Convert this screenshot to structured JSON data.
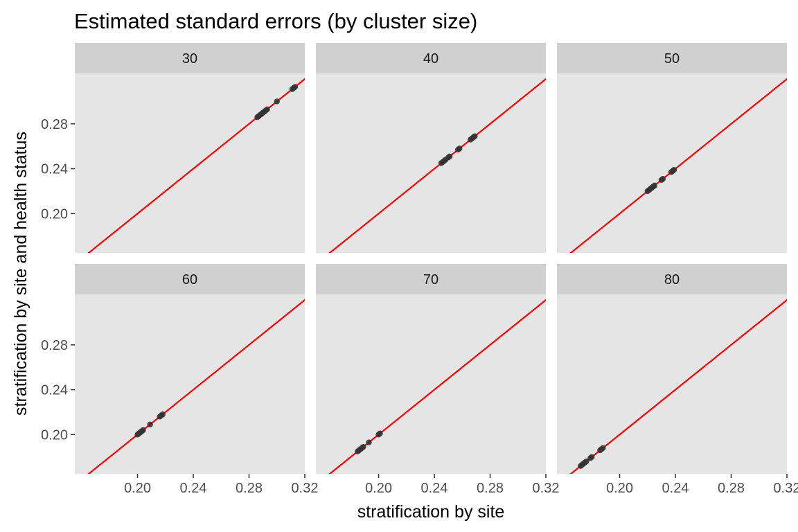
{
  "chart_data": {
    "type": "scatter",
    "title": "Estimated standard errors (by cluster size)",
    "xlabel": "stratification by site",
    "ylabel": "stratification by site and health status",
    "xlim": [
      0.155,
      0.32
    ],
    "ylim": [
      0.165,
      0.325
    ],
    "x_ticks": [
      0.2,
      0.24,
      0.28,
      0.32
    ],
    "x_tick_labels": [
      "0.20",
      "0.24",
      "0.28",
      "0.32"
    ],
    "y_ticks": [
      0.2,
      0.24,
      0.28
    ],
    "y_tick_labels": [
      "0.20",
      "0.24",
      "0.28"
    ],
    "reference_line": {
      "slope": 1,
      "intercept": 0,
      "color": "#ff0000"
    },
    "point_color": "#333333",
    "panel_background": "#e5e5e5",
    "strip_background": "#d0d0d0",
    "grid": false,
    "facet_layout": {
      "rows": 2,
      "cols": 3
    },
    "panels": [
      {
        "label": "30",
        "points": [
          [
            0.286,
            0.286
          ],
          [
            0.287,
            0.287
          ],
          [
            0.288,
            0.288
          ],
          [
            0.289,
            0.289
          ],
          [
            0.29,
            0.29
          ],
          [
            0.291,
            0.291
          ],
          [
            0.292,
            0.292
          ],
          [
            0.293,
            0.293
          ],
          [
            0.3,
            0.3
          ],
          [
            0.311,
            0.311
          ],
          [
            0.312,
            0.312
          ],
          [
            0.313,
            0.313
          ]
        ]
      },
      {
        "label": "40",
        "points": [
          [
            0.245,
            0.245
          ],
          [
            0.246,
            0.246
          ],
          [
            0.247,
            0.247
          ],
          [
            0.248,
            0.248
          ],
          [
            0.25,
            0.25
          ],
          [
            0.251,
            0.251
          ],
          [
            0.257,
            0.257
          ],
          [
            0.258,
            0.258
          ],
          [
            0.266,
            0.266
          ],
          [
            0.267,
            0.267
          ],
          [
            0.268,
            0.268
          ],
          [
            0.269,
            0.269
          ]
        ]
      },
      {
        "label": "50",
        "points": [
          [
            0.22,
            0.22
          ],
          [
            0.221,
            0.221
          ],
          [
            0.222,
            0.222
          ],
          [
            0.223,
            0.223
          ],
          [
            0.224,
            0.224
          ],
          [
            0.225,
            0.225
          ],
          [
            0.23,
            0.23
          ],
          [
            0.231,
            0.231
          ],
          [
            0.237,
            0.237
          ],
          [
            0.238,
            0.238
          ],
          [
            0.239,
            0.239
          ]
        ]
      },
      {
        "label": "60",
        "points": [
          [
            0.2,
            0.2
          ],
          [
            0.201,
            0.201
          ],
          [
            0.202,
            0.202
          ],
          [
            0.203,
            0.203
          ],
          [
            0.204,
            0.204
          ],
          [
            0.209,
            0.209
          ],
          [
            0.216,
            0.216
          ],
          [
            0.217,
            0.217
          ],
          [
            0.218,
            0.218
          ]
        ]
      },
      {
        "label": "70",
        "points": [
          [
            0.185,
            0.185
          ],
          [
            0.186,
            0.186
          ],
          [
            0.187,
            0.187
          ],
          [
            0.188,
            0.188
          ],
          [
            0.189,
            0.189
          ],
          [
            0.193,
            0.193
          ],
          [
            0.2,
            0.2
          ],
          [
            0.201,
            0.201
          ]
        ]
      },
      {
        "label": "80",
        "points": [
          [
            0.172,
            0.172
          ],
          [
            0.173,
            0.173
          ],
          [
            0.174,
            0.174
          ],
          [
            0.175,
            0.175
          ],
          [
            0.176,
            0.176
          ],
          [
            0.179,
            0.179
          ],
          [
            0.18,
            0.18
          ],
          [
            0.186,
            0.186
          ],
          [
            0.187,
            0.187
          ],
          [
            0.188,
            0.188
          ]
        ]
      }
    ]
  }
}
